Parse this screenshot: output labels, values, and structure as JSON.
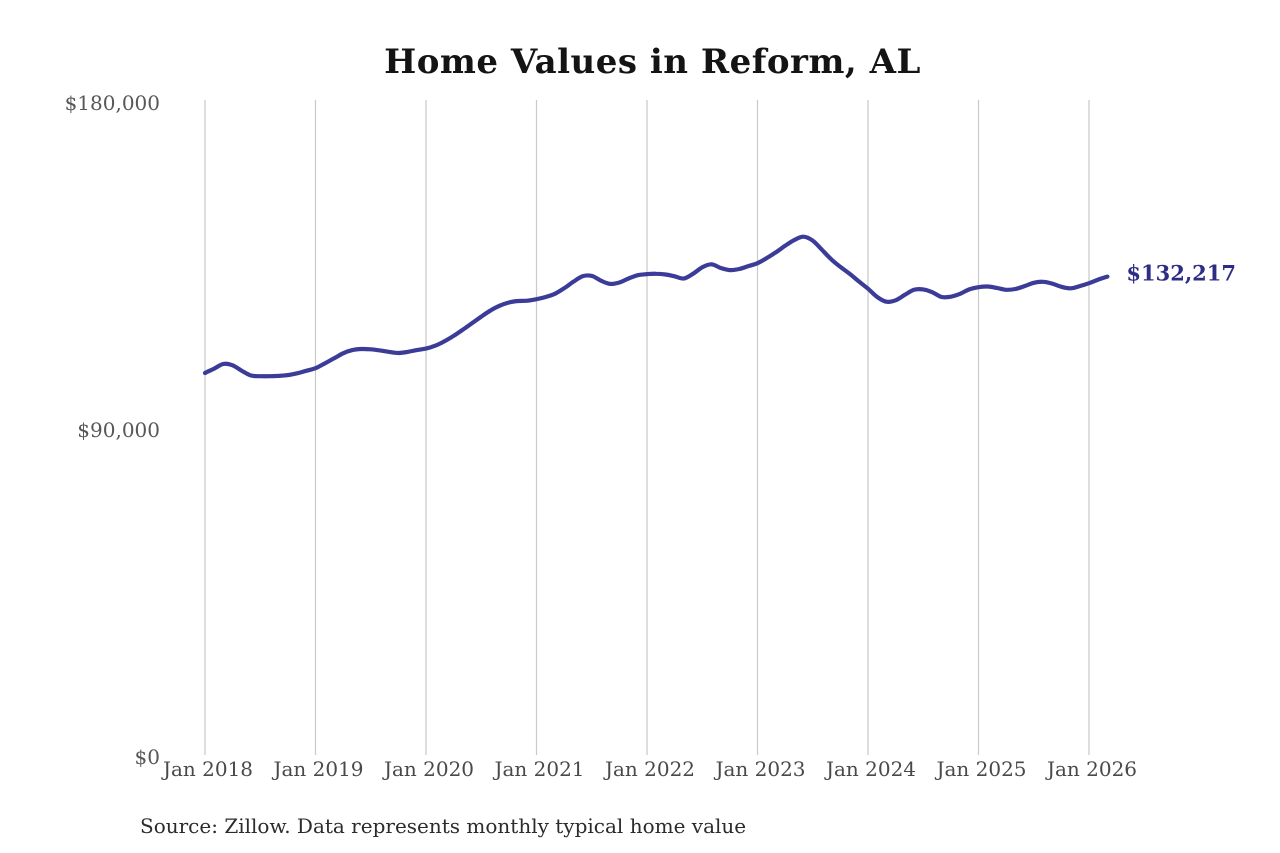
{
  "chart_data": {
    "type": "line",
    "title": "Home Values in Reform, AL",
    "series_name": "Monthly typical home value",
    "unit": "USD",
    "frequency": "monthly",
    "x_start": "2018-01",
    "x_end": "2026-03",
    "x_tick_labels": [
      "Jan 2018",
      "Jan 2019",
      "Jan 2020",
      "Jan 2021",
      "Jan 2022",
      "Jan 2023",
      "Jan 2024",
      "Jan 2025",
      "Jan 2026"
    ],
    "y_ticks": [
      {
        "value": 180000,
        "label": "$180,000"
      },
      {
        "value": 90000,
        "label": "$90,000"
      },
      {
        "value": 0,
        "label": "$0"
      }
    ],
    "ylim": [
      0,
      180000
    ],
    "grid": "vertical-only",
    "legend": "none",
    "line_color": "#3b3b98",
    "gridline_color": "#c9c9c9",
    "y_label_color": "#575757",
    "x_label_color": "#494949",
    "end_label": "$132,217",
    "end_label_color": "#2d2d86",
    "end_value": 132217,
    "values": [
      105700,
      106900,
      108200,
      107800,
      106300,
      105000,
      104800,
      104800,
      104900,
      105100,
      105600,
      106300,
      107000,
      108300,
      109700,
      111100,
      112000,
      112300,
      112200,
      111900,
      111500,
      111200,
      111500,
      112000,
      112400,
      113200,
      114400,
      115900,
      117600,
      119400,
      121200,
      122900,
      124200,
      125100,
      125500,
      125600,
      126000,
      126600,
      127500,
      129000,
      130800,
      132300,
      132400,
      131100,
      130200,
      130600,
      131700,
      132600,
      132900,
      133000,
      132800,
      132300,
      131700,
      133000,
      134800,
      135600,
      134600,
      134000,
      134300,
      135100,
      135900,
      137300,
      138900,
      140700,
      142300,
      143200,
      142100,
      139600,
      137000,
      134900,
      133000,
      130900,
      128900,
      126600,
      125300,
      125700,
      127200,
      128600,
      128700,
      127900,
      126600,
      126700,
      127500,
      128700,
      129300,
      129500,
      129100,
      128600,
      128800,
      129600,
      130500,
      130800,
      130300,
      129400,
      129000,
      129600,
      130400,
      131400,
      132217
    ]
  },
  "source_note": {
    "text": "Source: Zillow. Data represents monthly typical home value"
  }
}
